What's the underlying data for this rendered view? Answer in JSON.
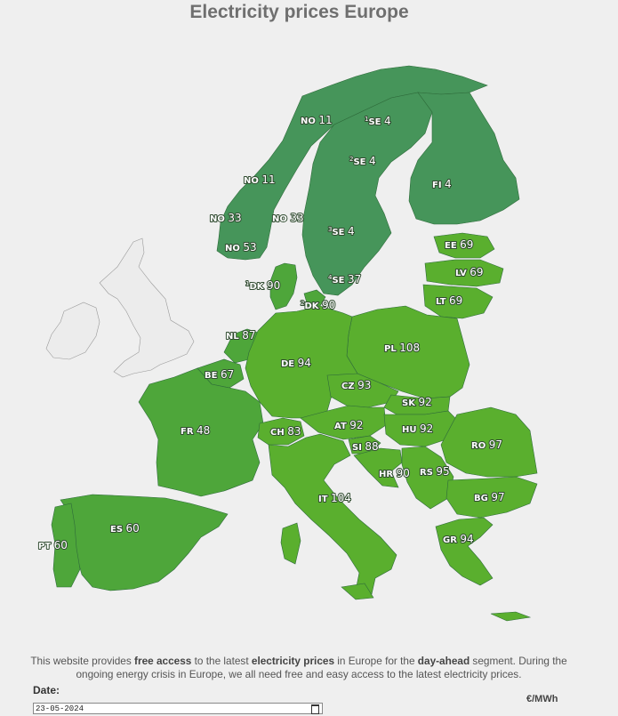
{
  "title": "Electricity prices Europe",
  "unit": "€/MWh",
  "date": {
    "label": "Date:",
    "value": "23-05-2024"
  },
  "footer": {
    "t1": "This website provides ",
    "b1": "free access",
    "t2": " to the latest ",
    "b2": "electricity prices",
    "t3": " in Europe for the ",
    "b3": "day-ahead",
    "t4": " segment. During the ongoing energy crisis in Europe, we all need free and easy access to the latest electricity prices."
  },
  "colors": {
    "dark": "#46955a",
    "mid": "#4ea63a",
    "light": "#5aaf2e",
    "lighter": "#62b82c"
  },
  "regions": [
    {
      "code": "NO",
      "price": "11"
    },
    {
      "code": "SE",
      "sup": "1",
      "price": "4"
    },
    {
      "code": "SE",
      "sup": "2",
      "price": "4"
    },
    {
      "code": "NO",
      "price": "11"
    },
    {
      "code": "FI",
      "price": "4"
    },
    {
      "code": "NO",
      "price": "33"
    },
    {
      "code": "NO",
      "price": "33"
    },
    {
      "code": "SE",
      "sup": "3",
      "price": "4"
    },
    {
      "code": "NO",
      "price": "53"
    },
    {
      "code": "EE",
      "price": "69"
    },
    {
      "code": "LV",
      "price": "69"
    },
    {
      "code": "DK",
      "sup": "1",
      "price": "90"
    },
    {
      "code": "SE",
      "sup": "4",
      "price": "37"
    },
    {
      "code": "LT",
      "price": "69"
    },
    {
      "code": "DK",
      "sup": "2",
      "price": "90"
    },
    {
      "code": "NL",
      "price": "87"
    },
    {
      "code": "PL",
      "price": "108"
    },
    {
      "code": "BE",
      "price": "67"
    },
    {
      "code": "DE",
      "price": "94"
    },
    {
      "code": "CZ",
      "price": "93"
    },
    {
      "code": "SK",
      "price": "92"
    },
    {
      "code": "FR",
      "price": "48"
    },
    {
      "code": "AT",
      "price": "92"
    },
    {
      "code": "HU",
      "price": "92"
    },
    {
      "code": "CH",
      "price": "83"
    },
    {
      "code": "RO",
      "price": "97"
    },
    {
      "code": "SI",
      "price": "88"
    },
    {
      "code": "HR",
      "price": "90"
    },
    {
      "code": "RS",
      "price": "95"
    },
    {
      "code": "IT",
      "price": "104"
    },
    {
      "code": "BG",
      "price": "97"
    },
    {
      "code": "ES",
      "price": "60"
    },
    {
      "code": "PT",
      "price": "60"
    },
    {
      "code": "GR",
      "price": "94"
    }
  ]
}
